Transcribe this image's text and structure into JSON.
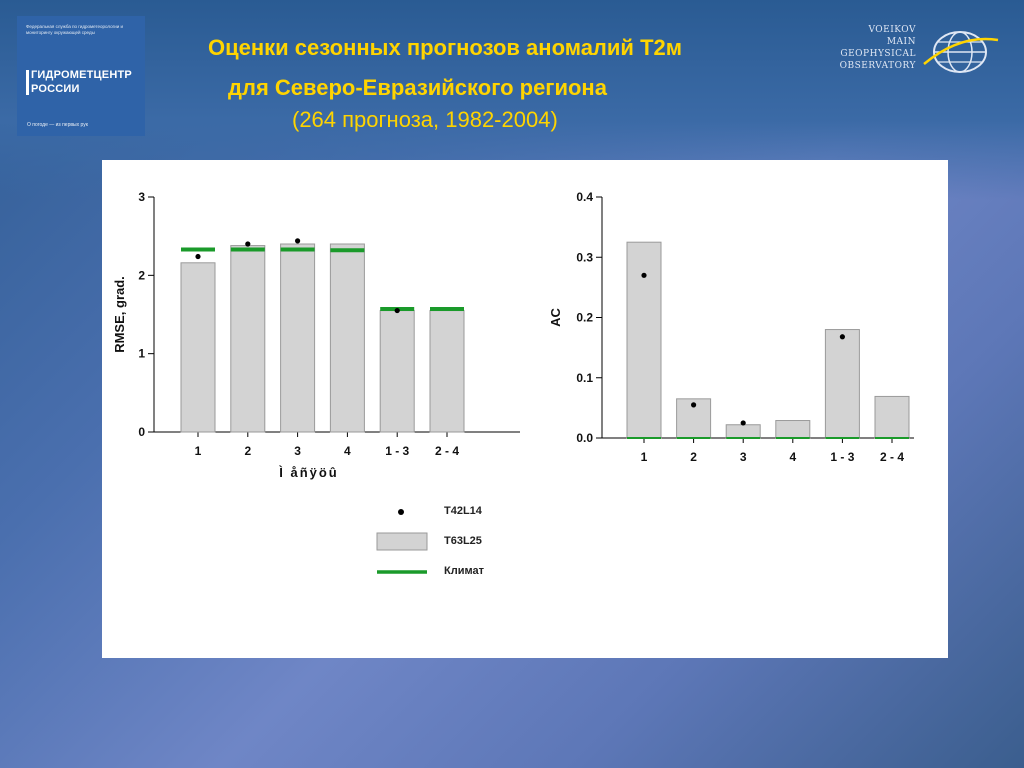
{
  "header": {
    "title_line1": "Оценки  сезонных прогнозов аномалий  Т2м",
    "title_line2": "для  Северо-Евразийского региона",
    "title_line3": "(264 прогноза, 1982-2004)"
  },
  "logo_left": {
    "small_text": "Федеральная служба по гидрометеорологии и мониторингу окружающей среды",
    "brand_line1": "ГИДРОМЕТЦЕНТР",
    "brand_line2": "РОССИИ",
    "motto": "О погоде — из первых рук"
  },
  "logo_right": {
    "line1": "VOEIKOV",
    "line2": "MAIN",
    "line3": "GEOPHYSICAL",
    "line4": "OBSERVATORY"
  },
  "colors": {
    "title": "#ffd400",
    "bar_fill": "#d3d3d3",
    "bar_stroke": "#9a9a9a",
    "climate_line": "#1a9a2a",
    "dot": "#000000"
  },
  "chart_data": [
    {
      "type": "bar",
      "categories": [
        "1",
        "2",
        "3",
        "4",
        "1 - 3",
        "2 - 4"
      ],
      "xlabel": "Ì  åñÿöû",
      "ylabel": "RMSE, grad.",
      "ylim": [
        0,
        3
      ],
      "yticks": [
        "0",
        "1",
        "2",
        "3"
      ],
      "series": [
        {
          "name": "T63L25",
          "kind": "bar",
          "values": [
            2.16,
            2.38,
            2.4,
            2.4,
            1.55,
            1.55
          ]
        },
        {
          "name": "T42L14",
          "kind": "dot",
          "values": [
            2.24,
            2.4,
            2.44,
            null,
            1.55,
            null
          ]
        },
        {
          "name": "Климат",
          "kind": "line",
          "values": [
            2.33,
            2.33,
            2.33,
            2.32,
            1.57,
            1.57
          ]
        }
      ]
    },
    {
      "type": "bar",
      "categories": [
        "1",
        "2",
        "3",
        "4",
        "1 - 3",
        "2 - 4"
      ],
      "xlabel": "",
      "ylabel": "AC",
      "ylim": [
        0,
        0.4
      ],
      "yticks": [
        "0.0",
        "0.1",
        "0.2",
        "0.3",
        "0.4"
      ],
      "series": [
        {
          "name": "T63L25",
          "kind": "bar",
          "values": [
            0.325,
            0.065,
            0.022,
            0.029,
            0.18,
            0.069
          ]
        },
        {
          "name": "T42L14",
          "kind": "dot",
          "values": [
            0.27,
            0.055,
            0.025,
            null,
            0.168,
            null
          ]
        },
        {
          "name": "Климат",
          "kind": "line",
          "values": [
            0.0,
            0.0,
            0.0,
            0.0,
            0.0,
            0.0
          ]
        }
      ]
    }
  ],
  "legend": {
    "items": [
      {
        "label": "T42L14",
        "symbol": "dot"
      },
      {
        "label": "T63L25",
        "symbol": "box"
      },
      {
        "label": "Климат",
        "symbol": "line"
      }
    ]
  }
}
